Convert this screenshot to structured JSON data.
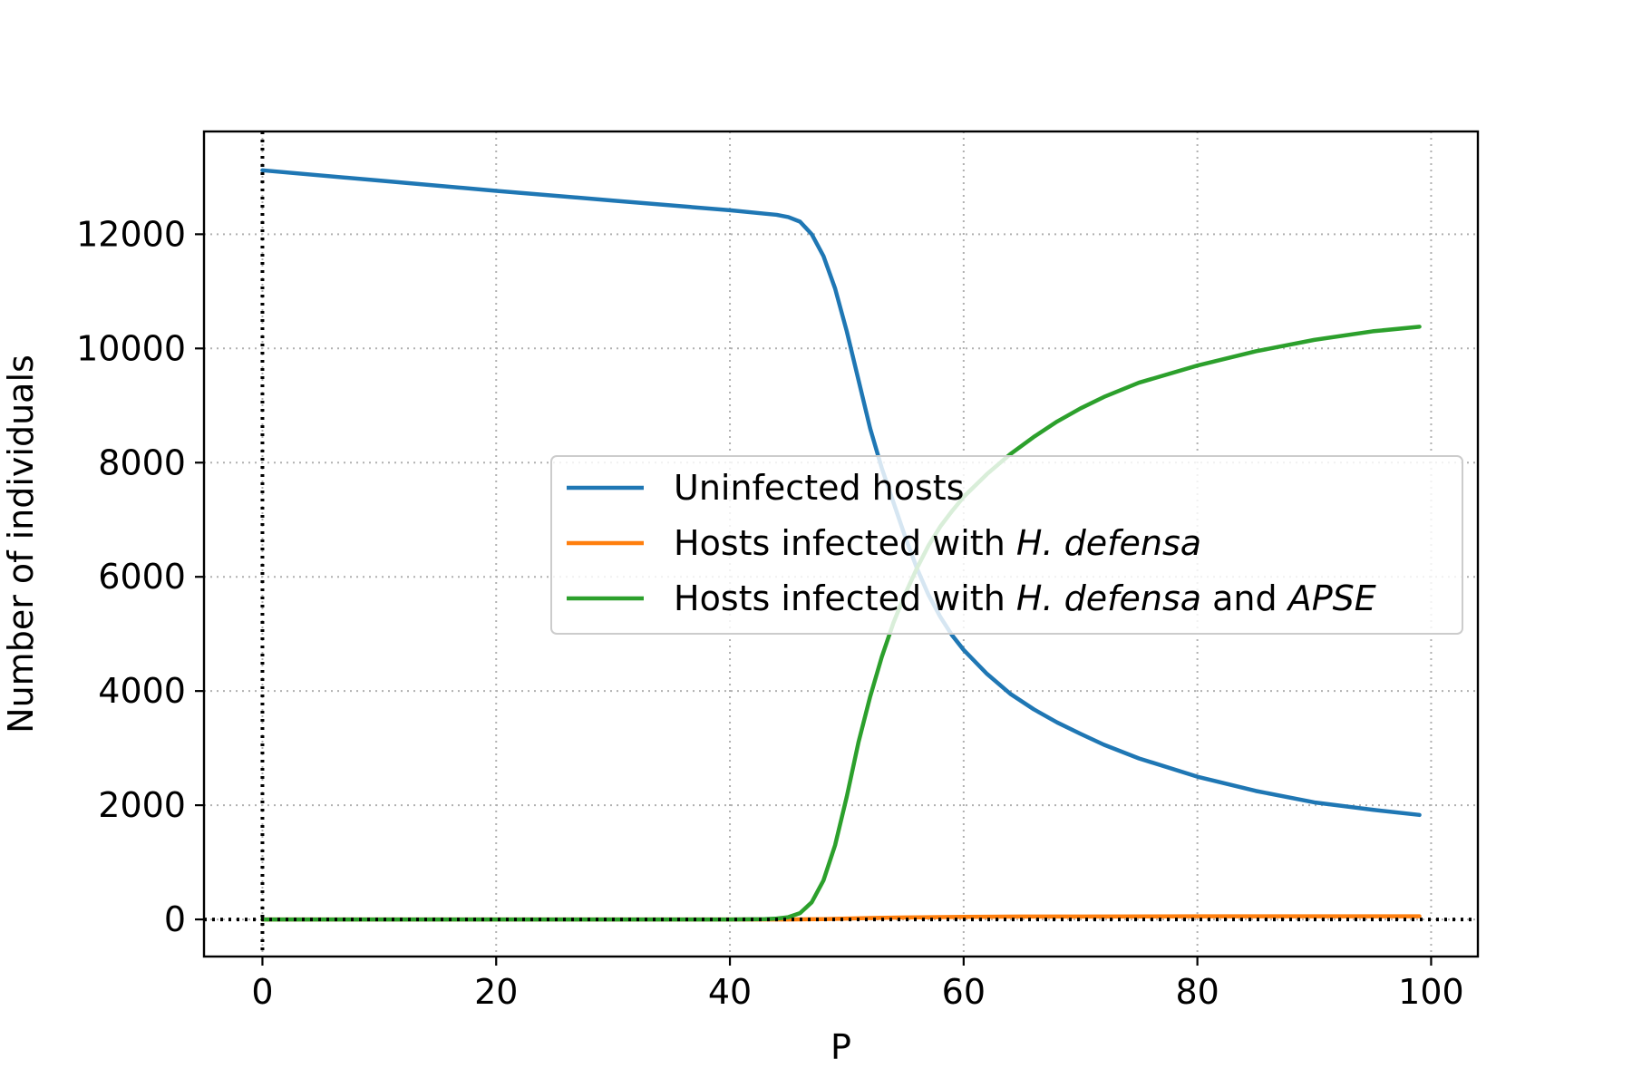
{
  "chart_data": {
    "type": "line",
    "title": "",
    "xlabel": "P",
    "ylabel": "Number of individuals",
    "xlim": [
      -5,
      104
    ],
    "ylim": [
      -650,
      13800
    ],
    "xticks": [
      0,
      20,
      40,
      60,
      80,
      100
    ],
    "yticks": [
      0,
      2000,
      4000,
      6000,
      8000,
      10000,
      12000
    ],
    "grid": true,
    "legend_position": "center-right",
    "reference_lines": {
      "x": 0,
      "y": 0,
      "style": "dotted",
      "color": "#000000"
    },
    "series": [
      {
        "name": "Uninfected hosts",
        "color": "#1f77b4",
        "x": [
          0,
          10,
          20,
          30,
          40,
          43,
          44,
          45,
          46,
          47,
          48,
          49,
          50,
          51,
          52,
          53,
          54,
          55,
          56,
          57,
          58,
          59,
          60,
          62,
          64,
          66,
          68,
          70,
          72,
          75,
          80,
          85,
          90,
          95,
          99
        ],
        "y": [
          13120,
          12940,
          12760,
          12590,
          12420,
          12360,
          12340,
          12300,
          12220,
          12000,
          11620,
          11050,
          10300,
          9450,
          8600,
          7900,
          7300,
          6700,
          6150,
          5680,
          5300,
          4980,
          4720,
          4300,
          3950,
          3680,
          3450,
          3250,
          3060,
          2820,
          2500,
          2250,
          2050,
          1920,
          1830
        ]
      },
      {
        "name": "Hosts infected with H. defensa",
        "name_parts": [
          "Hosts infected with ",
          "H. defensa"
        ],
        "color": "#ff7f0e",
        "x": [
          0,
          20,
          40,
          45,
          48,
          50,
          52,
          55,
          58,
          60,
          65,
          70,
          80,
          90,
          99
        ],
        "y": [
          0,
          0,
          0,
          0,
          5,
          15,
          25,
          35,
          40,
          45,
          50,
          50,
          55,
          55,
          55
        ]
      },
      {
        "name": "Hosts infected with H. defensa and APSE",
        "name_parts": [
          "Hosts infected with ",
          "H. defensa",
          " and ",
          "APSE"
        ],
        "color": "#2ca02c",
        "x": [
          0,
          20,
          40,
          43,
          44,
          45,
          46,
          47,
          48,
          49,
          50,
          51,
          52,
          53,
          54,
          55,
          56,
          57,
          58,
          59,
          60,
          62,
          64,
          66,
          68,
          70,
          72,
          75,
          80,
          85,
          90,
          95,
          99
        ],
        "y": [
          0,
          0,
          0,
          5,
          15,
          40,
          110,
          300,
          680,
          1300,
          2150,
          3100,
          3900,
          4600,
          5200,
          5700,
          6150,
          6550,
          6880,
          7150,
          7400,
          7800,
          8150,
          8450,
          8720,
          8950,
          9150,
          9400,
          9700,
          9950,
          10150,
          10300,
          10380
        ]
      }
    ]
  }
}
